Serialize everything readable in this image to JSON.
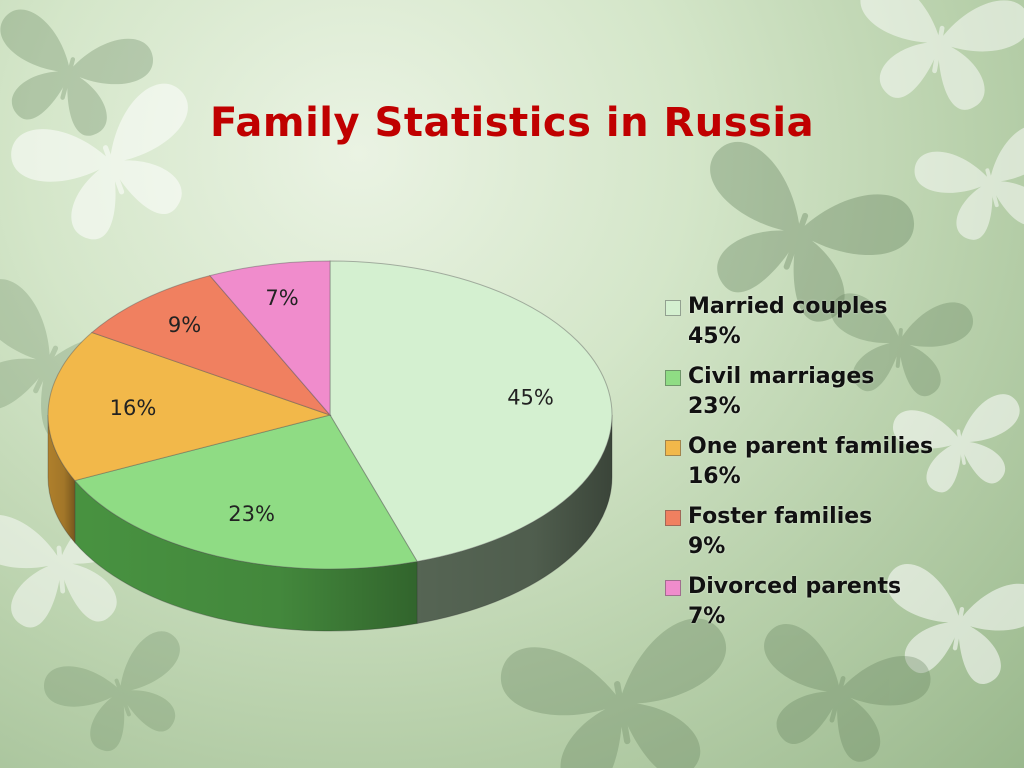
{
  "title": "Family Statistics in Russia",
  "chart_data": {
    "type": "pie",
    "style": "3d",
    "title": "",
    "legend_position": "right",
    "slices": [
      {
        "label": "Married couples",
        "value": 45,
        "value_label": "45%",
        "color": "#d4f0d0",
        "side_color": "#5a6a58"
      },
      {
        "label": "Civil marriages",
        "value": 23,
        "value_label": "23%",
        "color": "#8fdc84",
        "side_color": "#4c9a44"
      },
      {
        "label": "One parent families",
        "value": 16,
        "value_label": "16%",
        "color": "#f2b84a",
        "side_color": "#b8862e"
      },
      {
        "label": "Foster families",
        "value": 9,
        "value_label": "9%",
        "color": "#f08060",
        "side_color": "#b55a40"
      },
      {
        "label": "Divorced parents",
        "value": 7,
        "value_label": "7%",
        "color": "#f08ccc",
        "side_color": "#b0609a"
      }
    ]
  }
}
